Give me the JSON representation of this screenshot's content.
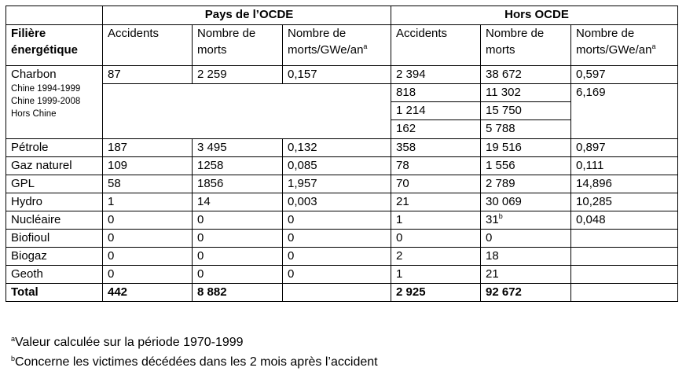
{
  "header": {
    "group_ocde": "Pays de l’OCDE",
    "group_hors": "Hors OCDE",
    "filiere_line1": "Filière",
    "filiere_line2": "énergétique",
    "col_accidents": "Accidents",
    "col_morts": "Nombre de morts",
    "col_morts_gwe": "Nombre de morts/GWe/an",
    "col_morts_gwe_sup": "a"
  },
  "charbon": {
    "label": "Charbon",
    "sublabels": [
      "Chine 1994-1999",
      "Chine 1999-2008",
      "Hors Chine"
    ],
    "ocde": [
      "87",
      "2 259",
      "0,157"
    ],
    "hors_rows": [
      [
        "2 394",
        "38 672",
        "0,597"
      ],
      [
        "818",
        "11 302",
        "6,169"
      ],
      [
        "1 214",
        "15 750",
        ""
      ],
      [
        "162",
        "5 788",
        ""
      ]
    ]
  },
  "rows": [
    {
      "label": "Pétrole",
      "v": [
        "187",
        "3 495",
        "0,132",
        "358",
        "19 516",
        "0,897"
      ]
    },
    {
      "label": "Gaz naturel",
      "v": [
        "109",
        "1258",
        "0,085",
        "78",
        "1 556",
        "0,111"
      ]
    },
    {
      "label": "GPL",
      "v": [
        "58",
        "1856",
        "1,957",
        "70",
        "2 789",
        "14,896"
      ]
    },
    {
      "label": "Hydro",
      "v": [
        "1",
        "14",
        "0,003",
        "21",
        "30 069",
        "10,285"
      ]
    },
    {
      "label": "Nucléaire",
      "v": [
        "0",
        "0",
        "0",
        "1",
        "31",
        "0,048"
      ],
      "sup_morts_hors": "b"
    },
    {
      "label": "Biofioul",
      "v": [
        "0",
        "0",
        "0",
        "0",
        "0",
        ""
      ]
    },
    {
      "label": "Biogaz",
      "v": [
        "0",
        "0",
        "0",
        "2",
        "18",
        ""
      ]
    },
    {
      "label": "Geoth",
      "v": [
        "0",
        "0",
        "0",
        "1",
        "21",
        ""
      ]
    }
  ],
  "total": {
    "label": "Total",
    "v": [
      "442",
      "8 882",
      "",
      "2 925",
      "92 672",
      ""
    ]
  },
  "notes": [
    {
      "sup": "a",
      "text": "Valeur calculée sur la période 1970-1999"
    },
    {
      "sup": "b",
      "text": "Concerne les victimes décédées dans les 2 mois après l’accident"
    }
  ]
}
